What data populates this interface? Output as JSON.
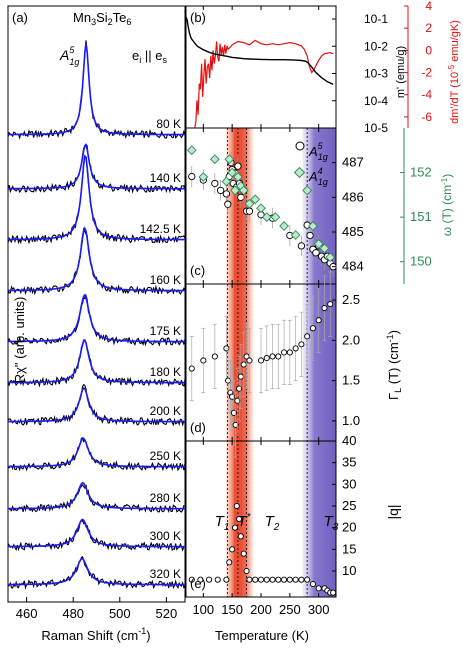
{
  "chart_data": [
    {
      "type": "line",
      "panel": "(a)",
      "title": "Mn3Si2Te6",
      "annotation_mode": "A1g^5",
      "annotation_polarization": "ei || es",
      "xlabel": "Raman Shift (cm-1)",
      "ylabel": "Rχ\" (arb. units)",
      "xlim": [
        452,
        528
      ],
      "xticks": [
        460,
        480,
        500,
        520
      ],
      "series_colors": {
        "data": "#000000",
        "fit": "#1a1aff"
      },
      "spectra": [
        {
          "label": "80 K",
          "center": 485.5,
          "width": 1.6,
          "amplitude": 7.0
        },
        {
          "label": "140 K",
          "center": 485.3,
          "width": 2.0,
          "amplitude": 3.4
        },
        {
          "label": "142.5 K",
          "center": 485.2,
          "width": 2.0,
          "amplitude": 6.5
        },
        {
          "label": "160 K",
          "center": 485.0,
          "width": 2.3,
          "amplitude": 4.8
        },
        {
          "label": "175 K",
          "center": 484.9,
          "width": 2.5,
          "amplitude": 3.6
        },
        {
          "label": "180 K",
          "center": 484.8,
          "width": 2.4,
          "amplitude": 3.3
        },
        {
          "label": "200 K",
          "center": 484.6,
          "width": 2.5,
          "amplitude": 2.6
        },
        {
          "label": "250 K",
          "center": 484.3,
          "width": 2.7,
          "amplitude": 2.2
        },
        {
          "label": "280 K",
          "center": 484.1,
          "width": 2.8,
          "amplitude": 2.0
        },
        {
          "label": "300 K",
          "center": 484.0,
          "width": 2.9,
          "amplitude": 2.1
        },
        {
          "label": "320 K",
          "center": 483.8,
          "width": 3.0,
          "amplitude": 2.0
        }
      ]
    },
    {
      "type": "line",
      "panel": "(b)",
      "xlim": [
        70,
        330
      ],
      "left_axis": {
        "label": "m' (emu/g)",
        "scale": "log",
        "ylim": [
          1e-05,
          0.3
        ],
        "tick_labels": [
          "10-1",
          "10-2",
          "10-3",
          "10-4",
          "10-5"
        ]
      },
      "right_axis": {
        "label": "dm'/dT (10-5 emu/gK)",
        "ylim": [
          -7,
          4
        ],
        "ticks": [
          4,
          2,
          0,
          -2,
          -4,
          -6
        ],
        "color": "#e01010"
      },
      "series": [
        {
          "name": "m'",
          "axis": "left",
          "color": "#000000",
          "x": [
            70,
            72,
            74,
            76,
            78,
            80,
            85,
            90,
            100,
            110,
            120,
            130,
            135,
            140,
            145,
            150,
            155,
            160,
            165,
            170,
            180,
            200,
            220,
            240,
            260,
            270,
            278,
            282,
            288,
            295,
            305,
            315,
            325
          ],
          "y": [
            0.12,
            0.09,
            0.05,
            0.03,
            0.022,
            0.018,
            0.013,
            0.01,
            0.0075,
            0.006,
            0.0052,
            0.0047,
            0.0045,
            0.0043,
            0.0041,
            0.0039,
            0.0038,
            0.0037,
            0.0036,
            0.0035,
            0.0034,
            0.0033,
            0.0032,
            0.0032,
            0.0031,
            0.003,
            0.0028,
            0.0024,
            0.0017,
            0.0011,
            0.0007,
            0.0005,
            0.0004
          ]
        },
        {
          "name": "dm'/dT",
          "axis": "right",
          "color": "#e01010",
          "x": [
            85,
            87,
            89,
            91,
            93,
            95,
            97,
            99,
            101,
            103,
            105,
            107,
            109,
            111,
            113,
            115,
            117,
            119,
            121,
            123,
            125,
            127,
            129,
            131,
            133,
            135,
            137,
            139,
            141,
            143,
            145,
            150,
            160,
            170,
            180,
            190,
            200,
            210,
            220,
            230,
            240,
            250,
            260,
            270,
            275,
            280,
            284,
            288,
            292,
            296,
            300,
            305,
            310,
            320,
            325
          ],
          "y": [
            -7,
            -6.5,
            -4.5,
            -5.8,
            -3,
            -3.5,
            -1.2,
            -4.2,
            -2.2,
            -0.8,
            -3,
            -1.5,
            -1.2,
            -2.5,
            -0.5,
            -1.8,
            0,
            -1.2,
            -0.5,
            0.8,
            -0.6,
            -1,
            0.6,
            -0.4,
            0.3,
            -0.5,
            0.5,
            -0.3,
            0.4,
            0.1,
            0.2,
            0.5,
            0.8,
            0.7,
            0.5,
            0.9,
            0.6,
            0.5,
            0.6,
            0.5,
            0.6,
            0.7,
            0.6,
            0.4,
            0.1,
            -0.5,
            -1.5,
            -2.0,
            -1.7,
            -1.3,
            -0.9,
            -0.5,
            -0.3,
            -0.2,
            -0.3
          ]
        }
      ]
    },
    {
      "type": "scatter",
      "panel": "(c)",
      "xlim": [
        70,
        330
      ],
      "left_axis": {
        "label": "",
        "ylim": [
          483.5,
          488
        ],
        "ticks": [
          484,
          485,
          486,
          487
        ]
      },
      "right_axis": {
        "label": "ω (T) (cm-1)",
        "ylim": [
          149.5,
          153
        ],
        "ticks": [
          150,
          151,
          152
        ],
        "color": "#2e8b57"
      },
      "legend": [
        "A1g^5",
        "A1g^4"
      ],
      "series": [
        {
          "name": "A1g^5",
          "marker": "open-circle",
          "x": [
            80,
            100,
            120,
            130,
            140,
            142.5,
            145,
            148,
            150,
            152,
            155,
            158,
            160,
            163,
            165,
            170,
            175,
            180,
            200,
            220,
            250,
            270,
            280,
            285,
            290,
            295,
            300,
            305,
            310,
            315,
            320,
            325
          ],
          "y": [
            486.6,
            486.5,
            486.4,
            486.2,
            486.1,
            485.8,
            486.6,
            487.0,
            486.8,
            486.4,
            486.7,
            486.3,
            486.9,
            486.4,
            486.0,
            486.2,
            485.6,
            485.6,
            485.5,
            485.4,
            484.9,
            484.6,
            485.2,
            484.9,
            484.5,
            484.4,
            484.6,
            484.3,
            484.2,
            484.3,
            484.1,
            484.0
          ],
          "err": [
            0.3,
            0.3,
            0.3,
            0.3,
            0.3,
            0.3,
            0.3,
            0.3,
            0.3,
            0.3,
            0.3,
            0.3,
            0.3,
            0.3,
            0.3,
            0.3,
            0.3,
            0.3,
            0.3,
            0.3,
            0.3,
            0.3,
            0.3,
            0.3,
            0.3,
            0.3,
            0.3,
            0.3,
            0.3,
            0.3,
            0.3,
            0.3
          ]
        },
        {
          "name": "A1g^4",
          "marker": "diamond",
          "color": "#2e8b57",
          "x": [
            80,
            100,
            120,
            140,
            145,
            150,
            155,
            160,
            165,
            170,
            180,
            190,
            200,
            210,
            225,
            240,
            260,
            280,
            290,
            300,
            310,
            320
          ],
          "y": [
            152.5,
            151.9,
            152.3,
            151.8,
            152.3,
            152.0,
            151.6,
            151.9,
            151.7,
            151.6,
            151.3,
            151.4,
            151.2,
            151.0,
            151.0,
            150.8,
            150.6,
            151.6,
            150.8,
            150.4,
            150.3,
            150.1
          ]
        }
      ]
    },
    {
      "type": "scatter",
      "panel": "(d)",
      "xlim": [
        70,
        330
      ],
      "right_axis": {
        "label": "ΓL (T) (cm-1)",
        "ylim": [
          0.75,
          2.7
        ],
        "ticks": [
          1.0,
          1.5,
          2.0,
          2.5
        ]
      },
      "series": [
        {
          "name": "ΓL",
          "marker": "open-circle",
          "x": [
            80,
            100,
            120,
            140,
            143,
            147,
            150,
            153,
            156,
            159,
            162,
            165,
            170,
            175,
            180,
            200,
            210,
            220,
            230,
            240,
            250,
            260,
            270,
            280,
            290,
            300,
            310,
            320
          ],
          "y": [
            1.65,
            1.75,
            1.8,
            1.9,
            1.5,
            1.35,
            1.3,
            1.1,
            0.95,
            1.25,
            1.4,
            1.55,
            1.7,
            1.8,
            1.75,
            1.75,
            1.78,
            1.8,
            1.8,
            1.85,
            1.85,
            1.9,
            1.95,
            2.05,
            2.15,
            2.25,
            2.4,
            2.45
          ],
          "err": [
            0.4,
            0.4,
            0.4,
            0.4,
            0.4,
            0.4,
            0.4,
            0.4,
            0.4,
            0.4,
            0.4,
            0.4,
            0.4,
            0.4,
            0.4,
            0.4,
            0.4,
            0.4,
            0.4,
            0.4,
            0.4,
            0.4,
            0.4,
            0.4,
            0.4,
            0.4,
            0.4,
            0.4
          ]
        }
      ]
    },
    {
      "type": "scatter",
      "panel": "(e)",
      "xlim": [
        70,
        330
      ],
      "right_axis": {
        "label": "|q|",
        "ylim": [
          4,
          40
        ],
        "ticks": [
          10,
          15,
          20,
          25,
          30,
          35,
          40
        ]
      },
      "series": [
        {
          "name": "|q|",
          "marker": "open-circle",
          "x": [
            80,
            95,
            110,
            125,
            140,
            145,
            150,
            155,
            158,
            162,
            165,
            170,
            175,
            180,
            190,
            200,
            210,
            220,
            230,
            240,
            250,
            260,
            270,
            280,
            290,
            300,
            310,
            315,
            320,
            325
          ],
          "y": [
            8,
            8,
            8,
            8,
            8,
            12,
            15,
            20,
            25,
            22,
            18,
            14,
            10,
            8,
            8,
            8,
            8,
            8,
            8,
            8,
            8,
            8,
            8,
            8,
            7,
            6,
            6,
            5.5,
            5,
            5
          ]
        }
      ]
    }
  ],
  "shared_x_axis": {
    "label": "Temperature (K)",
    "ticks": [
      100,
      150,
      200,
      250,
      300
    ]
  },
  "transition_labels": [
    {
      "text": "T1",
      "temperature": 142
    },
    {
      "text": "T*",
      "temperature": 160
    },
    {
      "text": "T2",
      "temperature": 175
    },
    {
      "text": "T3",
      "temperature": 280
    }
  ],
  "highlight_colors": {
    "red_band": "#e8452a",
    "purple_band": "#7b68c8",
    "green": "#2e8b57",
    "red_curve": "#e01010"
  }
}
